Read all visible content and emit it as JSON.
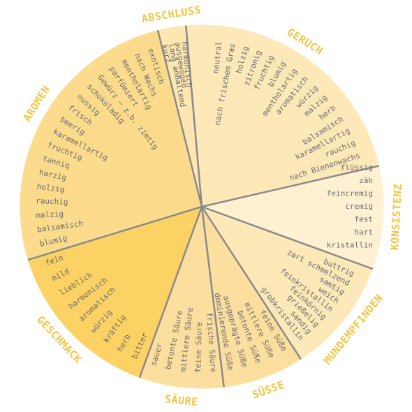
{
  "colors": {
    "background": "#ffffff",
    "divider": "#8a8a8a",
    "rim": "#ffffff",
    "term_text": "#6b6b6b",
    "category_text": "#f5c542"
  },
  "wheel": {
    "segments": [
      {
        "id": "geruch",
        "category": "GERUCH",
        "fill": "#fde8b8",
        "terms": [
          "neutral",
          "nach frischem Gras",
          "holzig",
          "zitronig",
          "fruchtig",
          "blumig",
          "mentholartig",
          "aromatisch",
          "würzig",
          "malzig",
          "herb",
          "balsamisch",
          "karamellartig",
          "rauchig",
          "nach Bienenwachs"
        ]
      },
      {
        "id": "konsistenz",
        "category": "KONSISTENZ",
        "fill": "#fef1d2",
        "terms": [
          "flüssig",
          "zäh",
          "feincremig",
          "cremig",
          "fest",
          "hart",
          "kristallin"
        ]
      },
      {
        "id": "mundempfinden",
        "category": "MUNDEMPFINDEN",
        "fill": "#fde8b8",
        "terms": [
          "buttrig",
          "zart schmelzend",
          "samtig",
          "weich",
          "feinkristallin",
          "feinkörnig",
          "grießelig",
          "sandig",
          "grobkristallin"
        ]
      },
      {
        "id": "suesse",
        "category": "SÜSSE",
        "fill": "#fcdf9f",
        "terms": [
          "feine Süße",
          "mittlere Süße",
          "betonte Süße",
          "ausgeprägte Süße",
          "dominierende Süße"
        ]
      },
      {
        "id": "saeure",
        "category": "SÄURE",
        "fill": "#fcdf9f",
        "terms": [
          "frische Säure",
          "feine Säure",
          "mittlere Säure",
          "betonte Säure",
          "sauer"
        ]
      },
      {
        "id": "geschmack",
        "category": "GESCHMACK",
        "fill": "#fcd265",
        "terms": [
          "bitter",
          "herb",
          "kräftig",
          "würzig",
          "aromatisch",
          "harmonisch",
          "lieblich",
          "mild",
          "fein"
        ]
      },
      {
        "id": "aromen",
        "category": "AROMEN",
        "fill": "#fcdc8c",
        "terms": [
          "blumig",
          "balsamisch",
          "malzig",
          "rauchig",
          "holzig",
          "harzig",
          "tanniq",
          "fruchtig",
          "karamellartig",
          "beerig",
          "frisch",
          "nussig",
          "schokoladig",
          "Gewürz – z.b. zimtig",
          "parfümiert",
          "mentholartig",
          "nach Wachs",
          "exotisch"
        ]
      },
      {
        "id": "abschluss",
        "category": "ABSCHLUSS",
        "fill": "#fde6b0",
        "terms": [
          "kurz",
          "lang anhaltend",
          "ausgewogen",
          "harmonisch"
        ]
      }
    ]
  }
}
